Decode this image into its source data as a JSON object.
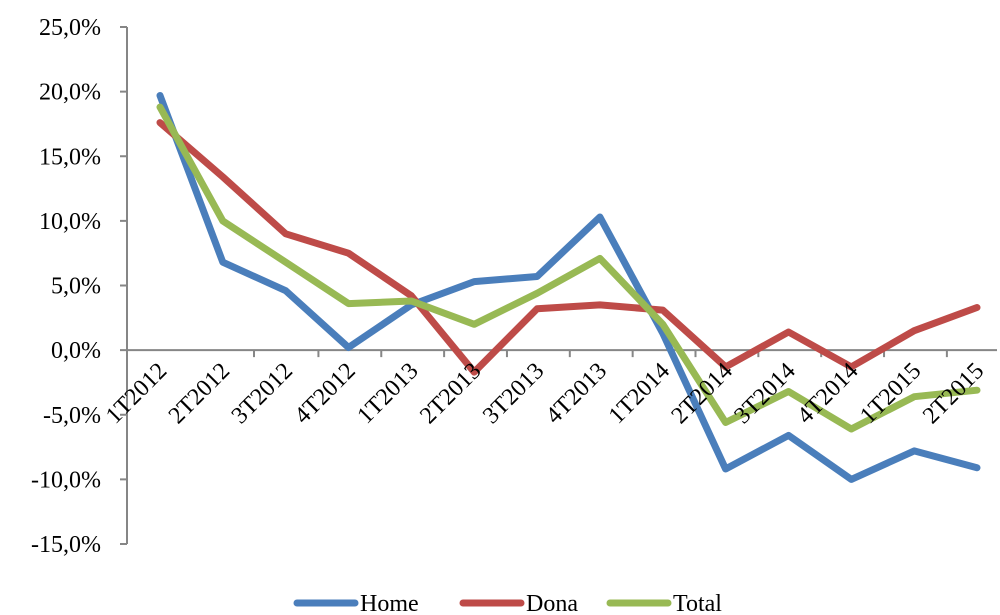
{
  "chart_data": {
    "type": "line",
    "categories": [
      "1T2012",
      "2T2012",
      "3T2012",
      "4T2012",
      "1T2013",
      "2T2013",
      "3T2013",
      "4T2013",
      "1T2014",
      "2T2014",
      "3T2014",
      "4T2014",
      "1T2015",
      "2T2015"
    ],
    "y_ticks": [
      "25,0%",
      "20,0%",
      "15,0%",
      "10,0%",
      "5,0%",
      "0,0%",
      "-5,0%",
      "-10,0%",
      "-15,0%"
    ],
    "ylim": [
      -15,
      25
    ],
    "y_step": 5,
    "grid": false,
    "legend_position": "bottom",
    "series": [
      {
        "name": "Home",
        "color": "#4a7ebb",
        "values": [
          19.7,
          6.8,
          4.6,
          0.2,
          3.5,
          5.3,
          5.7,
          10.3,
          1.3,
          -9.2,
          -6.6,
          -10.0,
          -7.8,
          -9.1
        ]
      },
      {
        "name": "Dona",
        "color": "#be4b48",
        "values": [
          17.6,
          13.4,
          9.0,
          7.5,
          4.2,
          -1.7,
          3.2,
          3.5,
          3.1,
          -1.3,
          1.4,
          -1.3,
          1.5,
          3.3
        ]
      },
      {
        "name": "Total",
        "color": "#98b954",
        "values": [
          18.8,
          10.0,
          6.8,
          3.6,
          3.8,
          2.0,
          4.4,
          7.1,
          2.0,
          -5.6,
          -3.2,
          -6.1,
          -3.6,
          -3.1
        ]
      }
    ]
  }
}
